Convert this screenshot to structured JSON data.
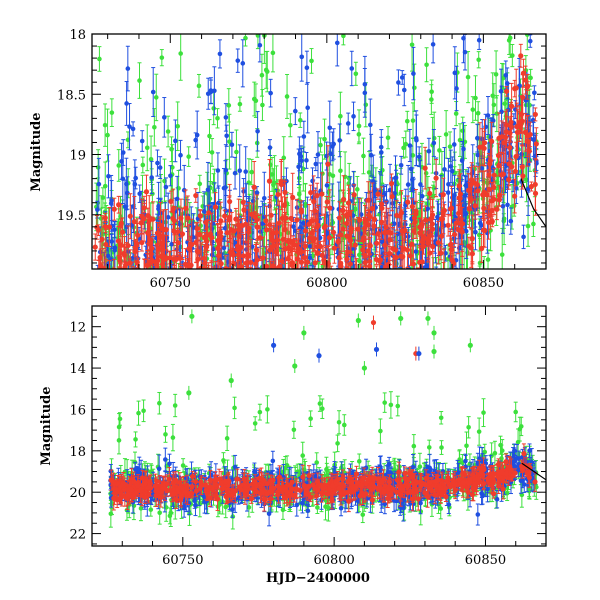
{
  "chart_data": [
    {
      "type": "scatter",
      "title": "",
      "xlabel": "",
      "ylabel": "Magnitude",
      "xlim": [
        60725,
        60870
      ],
      "ylim": [
        19.95,
        18.0
      ],
      "y_inverted": true,
      "grid": false,
      "x_ticks": [
        60750,
        60800,
        60850
      ],
      "x_tick_labels": [
        "60750",
        "60800",
        "60850"
      ],
      "y_ticks": [
        18.0,
        18.5,
        19.0,
        19.5
      ],
      "y_tick_labels": [
        "18",
        "18.5",
        "19",
        "19.5"
      ],
      "series": [
        {
          "color": "#1f4fe0",
          "note_color": "blue"
        },
        {
          "color": "#3ce03c",
          "note_color": "green"
        },
        {
          "color": "#f03c2c",
          "note_color": "red"
        }
      ],
      "model_curve": {
        "color": "#000000",
        "points": [
          [
            60862,
            19.2
          ],
          [
            60866,
            19.45
          ],
          [
            60870,
            19.6
          ]
        ]
      }
    },
    {
      "type": "scatter",
      "title": "",
      "xlabel": "HJD−2400000",
      "ylabel": "Magnitude",
      "xlim": [
        60720,
        60870
      ],
      "ylim": [
        22.6,
        11.0
      ],
      "y_inverted": true,
      "grid": false,
      "x_ticks": [
        60750,
        60800,
        60850
      ],
      "x_tick_labels": [
        "60750",
        "60800",
        "60850"
      ],
      "y_ticks": [
        12,
        14,
        16,
        18,
        20,
        22
      ],
      "y_tick_labels": [
        "12",
        "14",
        "16",
        "18",
        "20",
        "22"
      ],
      "series": [
        {
          "color": "#1f4fe0",
          "note_color": "blue"
        },
        {
          "color": "#3ce03c",
          "note_color": "green"
        },
        {
          "color": "#f03c2c",
          "note_color": "red"
        }
      ],
      "highlights": [
        {
          "x": 60753,
          "y": 11.5,
          "series": 1
        },
        {
          "x": 60780,
          "y": 12.9,
          "series": 0
        },
        {
          "x": 60787,
          "y": 13.9,
          "series": 1
        },
        {
          "x": 60790,
          "y": 12.3,
          "series": 1
        },
        {
          "x": 60795,
          "y": 13.4,
          "series": 0
        },
        {
          "x": 60808,
          "y": 11.7,
          "series": 1
        },
        {
          "x": 60810,
          "y": 14.0,
          "series": 1
        },
        {
          "x": 60813,
          "y": 11.8,
          "series": 2
        },
        {
          "x": 60814,
          "y": 13.1,
          "series": 0
        },
        {
          "x": 60822,
          "y": 11.6,
          "series": 1
        },
        {
          "x": 60827,
          "y": 13.3,
          "series": 2
        },
        {
          "x": 60828,
          "y": 13.3,
          "series": 0
        },
        {
          "x": 60831,
          "y": 11.6,
          "series": 1
        },
        {
          "x": 60833,
          "y": 12.3,
          "series": 1
        },
        {
          "x": 60833,
          "y": 13.2,
          "series": 1
        },
        {
          "x": 60845,
          "y": 12.9,
          "series": 1
        },
        {
          "x": 60766,
          "y": 14.6,
          "series": 1
        },
        {
          "x": 60752,
          "y": 15.2,
          "series": 1
        }
      ],
      "model_curve": {
        "color": "#000000",
        "points": [
          [
            60862,
            18.6
          ],
          [
            60866,
            19.0
          ],
          [
            60870,
            19.4
          ]
        ]
      }
    }
  ]
}
